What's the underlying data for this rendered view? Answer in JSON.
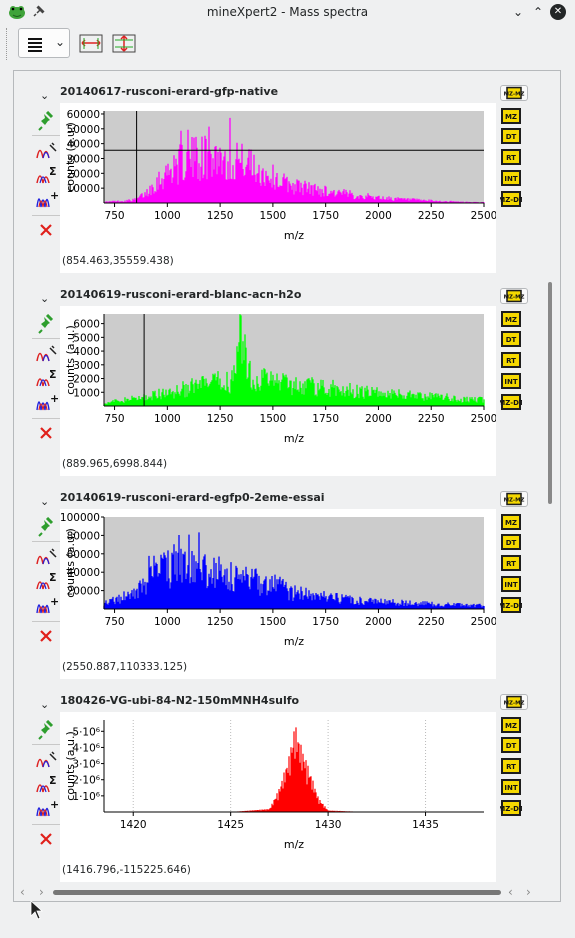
{
  "window": {
    "title": "mineXpert2 - Mass spectra",
    "app_icon": "frog-app-icon",
    "buttons": [
      "minimize",
      "maximize",
      "close"
    ]
  },
  "toolbar": {
    "menu_button": "hamburger-menu",
    "icons": [
      "horizontal-scale-icon",
      "vertical-scale-icon"
    ]
  },
  "colors": {
    "panel1": "#ff00ff",
    "panel2": "#00ff00",
    "panel3": "#0000ff",
    "panel4": "#ff0000",
    "plot_bg": "#cccccc",
    "pin_green": "#2e9e2e",
    "delete_red": "#e0201b",
    "tool_yellow": "#f5d800"
  },
  "right_tools": [
    "MZ-MZ",
    "MZ",
    "DT",
    "RT",
    "INT",
    "MZ-DT"
  ],
  "panels": [
    {
      "name": "20140617-rusconi-erard-gfp-native",
      "coords": "(854.463,35559.438)",
      "xlabel": "m/z",
      "ylabel": "counts (a.u.)",
      "x_ticks": [
        "750",
        "1000",
        "1250",
        "1500",
        "1750",
        "2000",
        "2250",
        "2500"
      ],
      "y_ticks": [
        "10000",
        "20000",
        "30000",
        "40000",
        "50000",
        "60000"
      ],
      "cursor": {
        "x": 854.463,
        "y": 35559.438
      }
    },
    {
      "name": "20140619-rusconi-erard-blanc-acn-h2o",
      "coords": "(889.965,6998.844)",
      "xlabel": "m/z",
      "ylabel": "counts (a.u.)",
      "x_ticks": [
        "750",
        "1000",
        "1250",
        "1500",
        "1750",
        "2000",
        "2250",
        "2500"
      ],
      "y_ticks": [
        "1000",
        "2000",
        "3000",
        "4000",
        "5000",
        "6000"
      ],
      "cursor": {
        "x": 889.965,
        "y": 6998.844
      }
    },
    {
      "name": "20140619-rusconi-erard-egfp0-2eme-essai",
      "coords": "(2550.887,110333.125)",
      "xlabel": "m/z",
      "ylabel": "counts (a.u.)",
      "x_ticks": [
        "750",
        "1000",
        "1250",
        "1500",
        "1750",
        "2000",
        "2250",
        "2500"
      ],
      "y_ticks": [
        "20000",
        "40000",
        "60000",
        "80000",
        "100000"
      ],
      "cursor": {
        "x": 2550.887,
        "y": 110333.125
      }
    },
    {
      "name": "180426-VG-ubi-84-N2-150mMNH4sulfo",
      "coords": "(1416.796,-115225.646)",
      "xlabel": "m/z",
      "ylabel": "counts (a.u.)",
      "x_ticks": [
        "1420",
        "1425",
        "1430",
        "1435"
      ],
      "y_ticks": [
        "1·10⁶",
        "2·10⁶",
        "3·10⁶",
        "4·10⁶",
        "5·10⁶"
      ],
      "cursor": {
        "x": 1416.796,
        "y": -115225.646
      }
    }
  ],
  "chart_data": [
    {
      "type": "line",
      "title": "20140617-rusconi-erard-gfp-native",
      "xlabel": "m/z",
      "ylabel": "counts (a.u.)",
      "xlim": [
        700,
        2500
      ],
      "ylim": [
        0,
        62000
      ],
      "series": [
        {
          "x": [
            700,
            800,
            850,
            900,
            950,
            1000,
            1050,
            1100,
            1150,
            1200,
            1250,
            1300,
            1350,
            1400,
            1450,
            1500,
            1550,
            1600,
            1700,
            1800,
            1900,
            2000,
            2100,
            2200,
            2300,
            2400,
            2500
          ],
          "values": [
            1000,
            2000,
            3000,
            9000,
            20000,
            28000,
            35000,
            40000,
            42000,
            43000,
            42000,
            40000,
            37000,
            33000,
            28000,
            24000,
            19000,
            16000,
            12500,
            9500,
            7000,
            5000,
            3500,
            2500,
            1600,
            1000,
            600
          ]
        }
      ]
    },
    {
      "type": "line",
      "title": "20140619-rusconi-erard-blanc-acn-h2o",
      "xlabel": "m/z",
      "ylabel": "counts (a.u.)",
      "xlim": [
        700,
        2500
      ],
      "ylim": [
        0,
        6700
      ],
      "series": [
        {
          "x": [
            700,
            800,
            900,
            1000,
            1100,
            1200,
            1300,
            1350,
            1400,
            1500,
            1600,
            1700,
            1800,
            1900,
            2000,
            2100,
            2200,
            2300,
            2400,
            2500
          ],
          "values": [
            300,
            600,
            900,
            1300,
            1800,
            2200,
            2500,
            6600,
            2800,
            2600,
            2200,
            1900,
            1700,
            1500,
            1300,
            1200,
            1000,
            900,
            700,
            600
          ]
        }
      ]
    },
    {
      "type": "line",
      "title": "20140619-rusconi-erard-egfp0-2eme-essai",
      "xlabel": "m/z",
      "ylabel": "counts (a.u.)",
      "xlim": [
        700,
        2500
      ],
      "ylim": [
        0,
        100000
      ],
      "series": [
        {
          "x": [
            700,
            800,
            850,
            900,
            950,
            1000,
            1050,
            1100,
            1150,
            1200,
            1250,
            1300,
            1350,
            1400,
            1450,
            1500,
            1550,
            1600,
            1700,
            1800,
            1900,
            2000,
            2100,
            2200,
            2300,
            2400,
            2500
          ],
          "values": [
            10000,
            18000,
            22000,
            38000,
            55000,
            60000,
            62000,
            60000,
            57000,
            54000,
            51000,
            48000,
            45000,
            42000,
            40000,
            36000,
            30000,
            24000,
            19000,
            16000,
            13000,
            11000,
            9500,
            8000,
            7000,
            6000,
            5500
          ]
        }
      ]
    },
    {
      "type": "line",
      "title": "180426-VG-ubi-84-N2-150mMNH4sulfo",
      "xlabel": "m/z",
      "ylabel": "counts (a.u.)",
      "xlim": [
        1418.5,
        1438
      ],
      "ylim": [
        0,
        5700000
      ],
      "series": [
        {
          "x": [
            1418.5,
            1425,
            1427,
            1427.5,
            1428,
            1428.3,
            1428.6,
            1429,
            1429.5,
            1430,
            1432,
            1438
          ],
          "values": [
            0,
            0,
            200000,
            1500000,
            3500000,
            5500000,
            4200000,
            2800000,
            900000,
            100000,
            0,
            0
          ]
        }
      ]
    }
  ]
}
